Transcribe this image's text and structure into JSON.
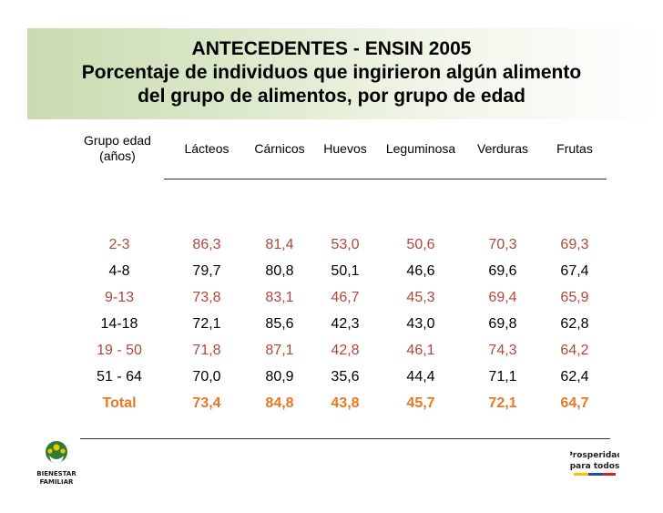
{
  "title": {
    "line1": "ANTECEDENTES - ENSIN 2005",
    "line2": "Porcentaje de individuos que ingirieron algún alimento",
    "line3": "del grupo de alimentos, por grupo de edad"
  },
  "table": {
    "headers": {
      "age_line1": "Grupo edad",
      "age_line2": "(años)",
      "lacteos": "Lácteos",
      "carnicos": "Cárnicos",
      "huevos": "Huevos",
      "leguminosa": "Leguminosa",
      "verduras": "Verduras",
      "frutas": "Frutas"
    },
    "rows": [
      {
        "age": "2-3",
        "lacteos": "86,3",
        "carnicos": "81,4",
        "huevos": "53,0",
        "leguminosa": "50,6",
        "verduras": "70,3",
        "frutas": "69,3",
        "style": "brown"
      },
      {
        "age": "4-8",
        "lacteos": "79,7",
        "carnicos": "80,8",
        "huevos": "50,1",
        "leguminosa": "46,6",
        "verduras": "69,6",
        "frutas": "67,4",
        "style": "black"
      },
      {
        "age": "9-13",
        "lacteos": "73,8",
        "carnicos": "83,1",
        "huevos": "46,7",
        "leguminosa": "45,3",
        "verduras": "69,4",
        "frutas": "65,9",
        "style": "brown"
      },
      {
        "age": "14-18",
        "lacteos": "72,1",
        "carnicos": "85,6",
        "huevos": "42,3",
        "leguminosa": "43,0",
        "verduras": "69,8",
        "frutas": "62,8",
        "style": "black"
      },
      {
        "age": "19 - 50",
        "lacteos": "71,8",
        "carnicos": "87,1",
        "huevos": "42,8",
        "leguminosa": "46,1",
        "verduras": "74,3",
        "frutas": "64,2",
        "style": "brown"
      },
      {
        "age": "51 - 64",
        "lacteos": "70,0",
        "carnicos": "80,9",
        "huevos": "35,6",
        "leguminosa": "44,4",
        "verduras": "71,1",
        "frutas": "62,4",
        "style": "black"
      },
      {
        "age": "Total",
        "lacteos": "73,4",
        "carnicos": "84,8",
        "huevos": "43,8",
        "leguminosa": "45,7",
        "verduras": "72,1",
        "frutas": "64,7",
        "style": "orange"
      }
    ]
  },
  "logos": {
    "left_text": "BIENESTAR FAMILIAR",
    "right_text": "Prosperidad para todos"
  },
  "colors": {
    "brown_row": "#b0473a",
    "total_row": "#e87722",
    "band": "#c9dcb0"
  }
}
